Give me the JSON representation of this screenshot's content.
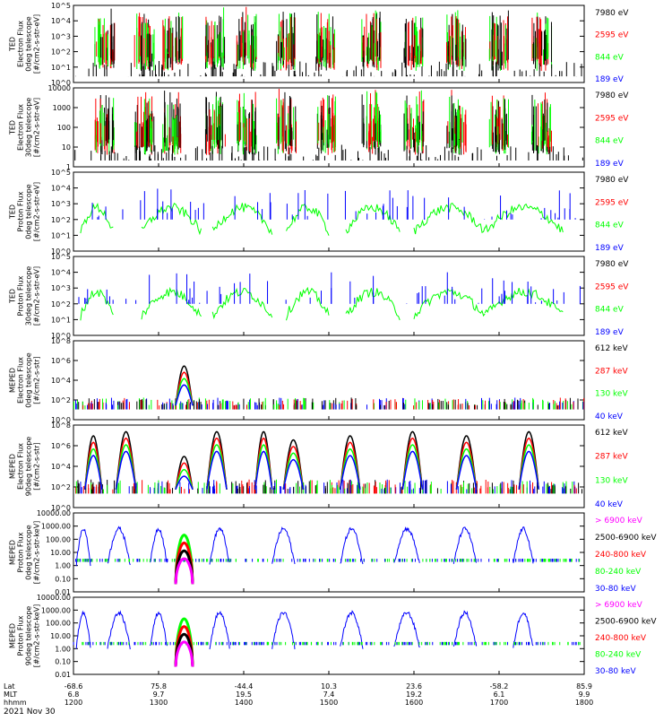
{
  "date_label": "2021 Nov 30",
  "colors": {
    "black": "#000000",
    "red": "#ff0000",
    "green": "#00ff00",
    "blue": "#0000ff",
    "magenta": "#ff00ff",
    "frame": "#000000"
  },
  "x_axis": {
    "row_labels": [
      "Lat",
      "MLT",
      "hhmm"
    ],
    "ticks": [
      {
        "hhmm": "1200",
        "lat": "-68.6",
        "mlt": "6.8"
      },
      {
        "hhmm": "1300",
        "lat": "75.8",
        "mlt": "9.7"
      },
      {
        "hhmm": "1400",
        "lat": "-44.4",
        "mlt": "19.5"
      },
      {
        "hhmm": "1500",
        "lat": "10.3",
        "mlt": "7.4"
      },
      {
        "hhmm": "1600",
        "lat": "23.6",
        "mlt": "19.2"
      },
      {
        "hhmm": "1700",
        "lat": "-58.2",
        "mlt": "6.1"
      },
      {
        "hhmm": "1800",
        "lat": "85.9",
        "mlt": "9.9"
      }
    ]
  },
  "chart_data": [
    {
      "type": "line",
      "panel": 1,
      "ylabel": [
        "TED",
        "Electron Flux",
        "0deg telescope",
        "[#/cm2-s-str-eV]"
      ],
      "yscale": "log",
      "ylim": [
        1,
        100000
      ],
      "ytick_labels": [
        "10^0",
        "10^1",
        "10^2",
        "10^3",
        "10^4",
        "10^5"
      ],
      "series": [
        {
          "name": "7980 eV",
          "color": "#000000"
        },
        {
          "name": "2595 eV",
          "color": "#ff0000"
        },
        {
          "name": "844 eV",
          "color": "#00ff00"
        },
        {
          "name": "189 eV",
          "color": "#0000ff"
        }
      ]
    },
    {
      "type": "line",
      "panel": 2,
      "ylabel": [
        "TED",
        "Electron Flux",
        "30deg telescope",
        "[#/cm2-s-str-eV]"
      ],
      "yscale": "log",
      "ylim": [
        1,
        10000
      ],
      "ytick_labels": [
        "1",
        "10",
        "100",
        "1000",
        "10000"
      ],
      "series": [
        {
          "name": "7980 eV",
          "color": "#000000"
        },
        {
          "name": "2595 eV",
          "color": "#ff0000"
        },
        {
          "name": "844 eV",
          "color": "#00ff00"
        },
        {
          "name": "189 eV",
          "color": "#0000ff"
        }
      ]
    },
    {
      "type": "line",
      "panel": 3,
      "ylabel": [
        "TED",
        "Proton Flux",
        "0deg telescope",
        "[#/cm2-s-str-eV]"
      ],
      "yscale": "log",
      "ylim": [
        1,
        100000
      ],
      "ytick_labels": [
        "10^0",
        "10^1",
        "10^2",
        "10^3",
        "10^4",
        "10^5"
      ],
      "series": [
        {
          "name": "7980 eV",
          "color": "#000000"
        },
        {
          "name": "2595 eV",
          "color": "#ff0000"
        },
        {
          "name": "844 eV",
          "color": "#00ff00"
        },
        {
          "name": "189 eV",
          "color": "#0000ff"
        }
      ]
    },
    {
      "type": "line",
      "panel": 4,
      "ylabel": [
        "TED",
        "Proton Flux",
        "30deg telescope",
        "[#/cm2-s-str-eV]"
      ],
      "yscale": "log",
      "ylim": [
        1,
        100000
      ],
      "ytick_labels": [
        "10^0",
        "10^1",
        "10^2",
        "10^3",
        "10^4",
        "10^5"
      ],
      "series": [
        {
          "name": "7980 eV",
          "color": "#000000"
        },
        {
          "name": "2595 eV",
          "color": "#ff0000"
        },
        {
          "name": "844 eV",
          "color": "#00ff00"
        },
        {
          "name": "189 eV",
          "color": "#0000ff"
        }
      ]
    },
    {
      "type": "line",
      "panel": 5,
      "ylabel": [
        "MEPED",
        "Electron Flux",
        "0deg telescope",
        "[#/cm2-s-str]"
      ],
      "yscale": "log",
      "ylim": [
        1,
        100000000
      ],
      "ytick_labels": [
        "10^0",
        "10^2",
        "10^4",
        "10^6",
        "10^8"
      ],
      "series": [
        {
          "name": "612 keV",
          "color": "#000000"
        },
        {
          "name": "287 keV",
          "color": "#ff0000"
        },
        {
          "name": "130 keV",
          "color": "#00ff00"
        },
        {
          "name": "40 keV",
          "color": "#0000ff"
        }
      ]
    },
    {
      "type": "line",
      "panel": 6,
      "ylabel": [
        "MEPED",
        "Electron Flux",
        "90deg telescope",
        "[#/cm2-s-str]"
      ],
      "yscale": "log",
      "ylim": [
        1,
        100000000
      ],
      "ytick_labels": [
        "10^0",
        "10^2",
        "10^4",
        "10^6",
        "10^8"
      ],
      "series": [
        {
          "name": "612 keV",
          "color": "#000000"
        },
        {
          "name": "287 keV",
          "color": "#ff0000"
        },
        {
          "name": "130 keV",
          "color": "#00ff00"
        },
        {
          "name": "40 keV",
          "color": "#0000ff"
        }
      ]
    },
    {
      "type": "line",
      "panel": 7,
      "ylabel": [
        "MEPED",
        "Proton Flux",
        "0deg telescope",
        "[#/cm2-s-str-keV]"
      ],
      "yscale": "log",
      "ylim": [
        0.01,
        10000
      ],
      "ytick_labels": [
        "0.01",
        "0.10",
        "1.00",
        "10.00",
        "100.00",
        "1000.00",
        "10000.00"
      ],
      "series": [
        {
          "name": "> 6900 keV",
          "color": "#ff00ff"
        },
        {
          "name": "2500-6900 keV",
          "color": "#000000"
        },
        {
          "name": "240-800 keV",
          "color": "#ff0000"
        },
        {
          "name": "80-240 keV",
          "color": "#00ff00"
        },
        {
          "name": "30-80 keV",
          "color": "#0000ff"
        }
      ]
    },
    {
      "type": "line",
      "panel": 8,
      "ylabel": [
        "MEPED",
        "Proton Flux",
        "90deg telescope",
        "[#/cm2-s-str-keV]"
      ],
      "yscale": "log",
      "ylim": [
        0.01,
        10000
      ],
      "ytick_labels": [
        "0.01",
        "0.10",
        "1.00",
        "10.00",
        "100.00",
        "1000.00",
        "10000.00"
      ],
      "series": [
        {
          "name": "> 6900 keV",
          "color": "#ff00ff"
        },
        {
          "name": "2500-6900 keV",
          "color": "#000000"
        },
        {
          "name": "240-800 keV",
          "color": "#ff0000"
        },
        {
          "name": "80-240 keV",
          "color": "#00ff00"
        },
        {
          "name": "30-80 keV",
          "color": "#0000ff"
        }
      ]
    }
  ]
}
